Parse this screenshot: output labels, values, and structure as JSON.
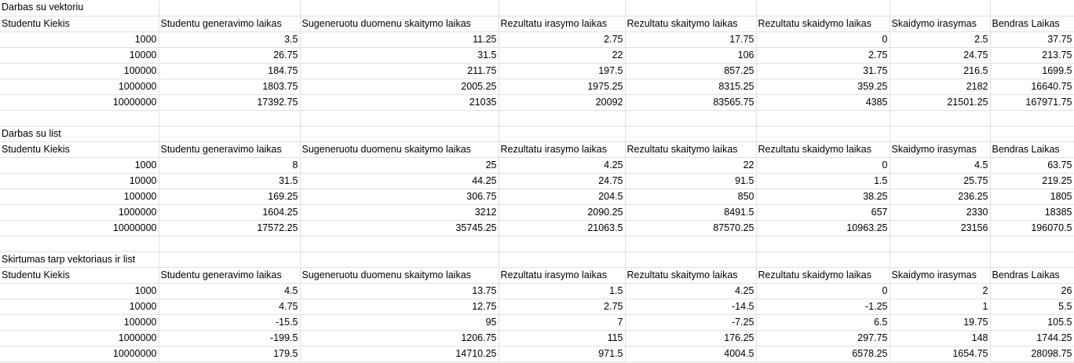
{
  "sections": [
    {
      "title": "Darbas su vektoriu",
      "headers": [
        "Studentu Kiekis",
        "Studentu generavimo laikas",
        "Sugeneruotu duomenu skaitymo laikas",
        "Rezultatu irasymo laikas",
        "Rezultatu skaitymo laikas",
        "Rezultatu skaidymo laikas",
        "Skaidymo irasymas",
        "Bendras Laikas"
      ],
      "rows": [
        [
          "1000",
          "3.5",
          "11.25",
          "2.75",
          "17.75",
          "0",
          "2.5",
          "37.75"
        ],
        [
          "10000",
          "26.75",
          "31.5",
          "22",
          "106",
          "2.75",
          "24.75",
          "213.75"
        ],
        [
          "100000",
          "184.75",
          "211.75",
          "197.5",
          "857.25",
          "31.75",
          "216.5",
          "1699.5"
        ],
        [
          "1000000",
          "1803.75",
          "2005.25",
          "1975.25",
          "8315.25",
          "359.25",
          "2182",
          "16640.75"
        ],
        [
          "10000000",
          "17392.75",
          "21035",
          "20092",
          "83565.75",
          "4385",
          "21501.25",
          "167971.75"
        ]
      ]
    },
    {
      "title": "Darbas su list",
      "headers": [
        "Studentu Kiekis",
        "Studentu generavimo laikas",
        "Sugeneruotu duomenu skaitymo laikas",
        "Rezultatu irasymo laikas",
        "Rezultatu skaitymo laikas",
        "Rezultatu skaidymo laikas",
        "Skaidymo irasymas",
        "Bendras Laikas"
      ],
      "rows": [
        [
          "1000",
          "8",
          "25",
          "4.25",
          "22",
          "0",
          "4.5",
          "63.75"
        ],
        [
          "10000",
          "31.5",
          "44.25",
          "24.75",
          "91.5",
          "1.5",
          "25.75",
          "219.25"
        ],
        [
          "100000",
          "169.25",
          "306.75",
          "204.5",
          "850",
          "38.25",
          "236.25",
          "1805"
        ],
        [
          "1000000",
          "1604.25",
          "3212",
          "2090.25",
          "8491.5",
          "657",
          "2330",
          "18385"
        ],
        [
          "10000000",
          "17572.25",
          "35745.25",
          "21063.5",
          "87570.25",
          "10963.25",
          "23156",
          "196070.5"
        ]
      ]
    },
    {
      "title": "Skirtumas tarp vektoriaus ir list",
      "headers": [
        "Studentu Kiekis",
        "Studentu generavimo laikas",
        "Sugeneruotu duomenu skaitymo laikas",
        "Rezultatu irasymo laikas",
        "Rezultatu skaitymo laikas",
        "Rezultatu skaidymo laikas",
        "Skaidymo irasymas",
        "Bendras Laikas"
      ],
      "rows": [
        [
          "1000",
          "4.5",
          "13.75",
          "1.5",
          "4.25",
          "0",
          "2",
          "26"
        ],
        [
          "10000",
          "4.75",
          "12.75",
          "2.75",
          "-14.5",
          "-1.25",
          "1",
          "5.5"
        ],
        [
          "100000",
          "-15.5",
          "95",
          "7",
          "-7.25",
          "6.5",
          "19.75",
          "105.5"
        ],
        [
          "1000000",
          "-199.5",
          "1206.75",
          "115",
          "176.25",
          "297.75",
          "148",
          "1744.25"
        ],
        [
          "10000000",
          "179.5",
          "14710.25",
          "971.5",
          "4004.5",
          "6578.25",
          "1654.75",
          "28098.75"
        ]
      ]
    }
  ]
}
